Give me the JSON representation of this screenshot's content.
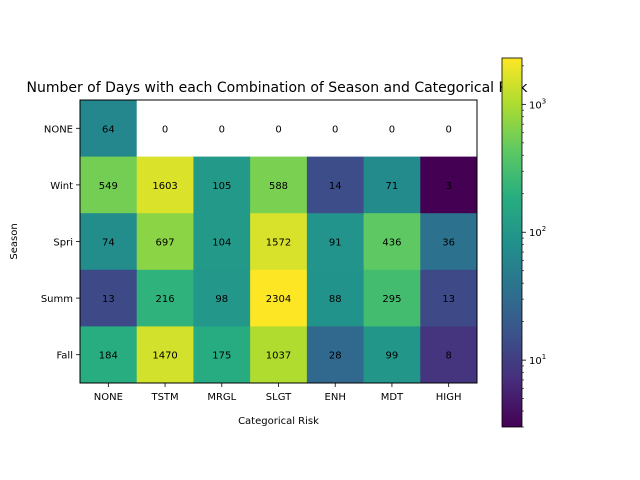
{
  "chart_data": {
    "type": "heatmap",
    "title": "Number of Days with each Combination of Season and Categorical Risk",
    "xlabel": "Categorical Risk",
    "ylabel": "Season",
    "x_categories": [
      "NONE",
      "TSTM",
      "MRGL",
      "SLGT",
      "ENH",
      "MDT",
      "HIGH"
    ],
    "y_categories": [
      "NONE",
      "Wint",
      "Spri",
      "Summ",
      "Fall"
    ],
    "values": [
      [
        64,
        0,
        0,
        0,
        0,
        0,
        0
      ],
      [
        549,
        1603,
        105,
        588,
        14,
        71,
        3
      ],
      [
        74,
        697,
        104,
        1572,
        91,
        436,
        36
      ],
      [
        13,
        216,
        98,
        2304,
        88,
        295,
        13
      ],
      [
        184,
        1470,
        175,
        1037,
        28,
        99,
        8
      ]
    ],
    "colorbar": {
      "scale": "log",
      "min": 3,
      "max": 2304,
      "ticks": [
        10,
        100,
        1000
      ],
      "tick_exponents": [
        "1",
        "2",
        "3"
      ],
      "colormap": "viridis"
    },
    "zero_color": "#ffffff"
  }
}
